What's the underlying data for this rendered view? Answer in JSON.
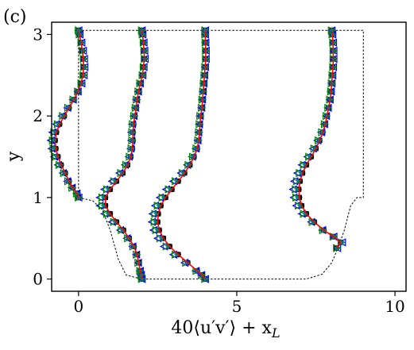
{
  "chart_data": {
    "type": "line",
    "panel_label": "(c)",
    "xlabel": "40⟨u′v′⟩ + x_L",
    "ylabel": "y",
    "xlim": [
      -0.85,
      10.35
    ],
    "ylim": [
      -0.15,
      3.15
    ],
    "xticks": [
      0,
      5,
      10
    ],
    "yticks": [
      0,
      1,
      2,
      3
    ],
    "grid": false,
    "legend": "none",
    "colors": {
      "line": "#ff0000",
      "circle": "#000000",
      "square": "#000000",
      "triangle_left": "#0000ff",
      "triangle_right": "#008000",
      "star": "#008080",
      "geometry": "#000000"
    },
    "geometry_outline": [
      [
        0.0,
        3.05
      ],
      [
        9.0,
        3.05
      ],
      [
        9.0,
        1.0
      ],
      [
        8.8,
        1.0
      ],
      [
        8.6,
        0.9
      ],
      [
        8.4,
        0.6
      ],
      [
        8.2,
        0.38
      ],
      [
        8.0,
        0.2
      ],
      [
        7.7,
        0.06
      ],
      [
        7.2,
        0.0
      ],
      [
        2.0,
        0.0
      ],
      [
        1.5,
        0.05
      ],
      [
        1.25,
        0.25
      ],
      [
        1.0,
        0.6
      ],
      [
        0.75,
        0.85
      ],
      [
        0.45,
        0.96
      ],
      [
        0.0,
        1.0
      ],
      [
        0.0,
        3.05
      ]
    ],
    "profiles": [
      {
        "x_L": 0,
        "y": [
          1.0,
          1.05,
          1.12,
          1.2,
          1.3,
          1.4,
          1.5,
          1.6,
          1.7,
          1.8,
          1.9,
          2.0,
          2.1,
          2.2,
          2.3,
          2.4,
          2.5,
          2.6,
          2.7,
          2.8,
          2.9,
          3.0,
          3.05
        ],
        "x": [
          0.0,
          -0.05,
          -0.18,
          -0.3,
          -0.42,
          -0.55,
          -0.65,
          -0.72,
          -0.74,
          -0.7,
          -0.6,
          -0.45,
          -0.3,
          -0.15,
          -0.02,
          0.08,
          0.14,
          0.16,
          0.15,
          0.12,
          0.08,
          0.03,
          0.0
        ]
      },
      {
        "x_L": 2,
        "y": [
          0.0,
          0.05,
          0.1,
          0.2,
          0.3,
          0.4,
          0.5,
          0.6,
          0.7,
          0.8,
          0.9,
          1.0,
          1.1,
          1.2,
          1.3,
          1.4,
          1.5,
          1.6,
          1.7,
          1.8,
          1.9,
          2.0,
          2.1,
          2.2,
          2.3,
          2.4,
          2.5,
          2.6,
          2.7,
          2.8,
          2.9,
          3.0,
          3.05
        ],
        "x": [
          2.0,
          1.98,
          1.95,
          1.9,
          1.85,
          1.75,
          1.6,
          1.42,
          1.2,
          1.0,
          0.85,
          0.85,
          1.0,
          1.2,
          1.4,
          1.55,
          1.65,
          1.7,
          1.72,
          1.72,
          1.74,
          1.78,
          1.82,
          1.85,
          1.9,
          1.95,
          2.02,
          2.05,
          2.08,
          2.07,
          2.05,
          2.02,
          2.0
        ]
      },
      {
        "x_L": 4,
        "y": [
          0.0,
          0.05,
          0.1,
          0.2,
          0.3,
          0.4,
          0.5,
          0.6,
          0.7,
          0.8,
          0.9,
          1.0,
          1.1,
          1.2,
          1.3,
          1.4,
          1.5,
          1.6,
          1.7,
          1.8,
          1.9,
          2.0,
          2.1,
          2.2,
          2.3,
          2.4,
          2.5,
          2.6,
          2.7,
          2.8,
          2.9,
          3.0,
          3.05
        ],
        "x": [
          4.0,
          3.9,
          3.75,
          3.45,
          3.15,
          2.88,
          2.68,
          2.55,
          2.5,
          2.52,
          2.6,
          2.75,
          2.95,
          3.15,
          3.35,
          3.52,
          3.65,
          3.75,
          3.8,
          3.82,
          3.84,
          3.86,
          3.9,
          3.92,
          3.94,
          3.96,
          3.98,
          4.0,
          4.02,
          4.02,
          4.01,
          4.0,
          4.0
        ]
      },
      {
        "x_L": 8,
        "y": [
          0.38,
          0.45,
          0.52,
          0.6,
          0.7,
          0.8,
          0.9,
          1.0,
          1.1,
          1.2,
          1.3,
          1.4,
          1.5,
          1.6,
          1.7,
          1.8,
          1.9,
          2.0,
          2.1,
          2.2,
          2.3,
          2.4,
          2.5,
          2.6,
          2.7,
          2.8,
          2.9,
          3.0,
          3.05
        ],
        "x": [
          8.15,
          8.28,
          8.05,
          7.75,
          7.45,
          7.2,
          7.05,
          6.98,
          6.96,
          7.0,
          7.08,
          7.2,
          7.35,
          7.5,
          7.62,
          7.72,
          7.8,
          7.85,
          7.9,
          7.95,
          7.98,
          8.0,
          8.02,
          8.04,
          8.05,
          8.05,
          8.04,
          8.02,
          8.0
        ]
      }
    ],
    "symbol_series": [
      {
        "marker": "circle",
        "offset": [
          0,
          0
        ]
      },
      {
        "marker": "square",
        "offset": [
          0,
          0
        ]
      },
      {
        "marker": "triangle_left",
        "offset": [
          -0.18,
          0
        ]
      },
      {
        "marker": "triangle_right",
        "offset": [
          -0.1,
          0
        ]
      },
      {
        "marker": "star",
        "offset": [
          -0.06,
          0
        ]
      }
    ]
  }
}
